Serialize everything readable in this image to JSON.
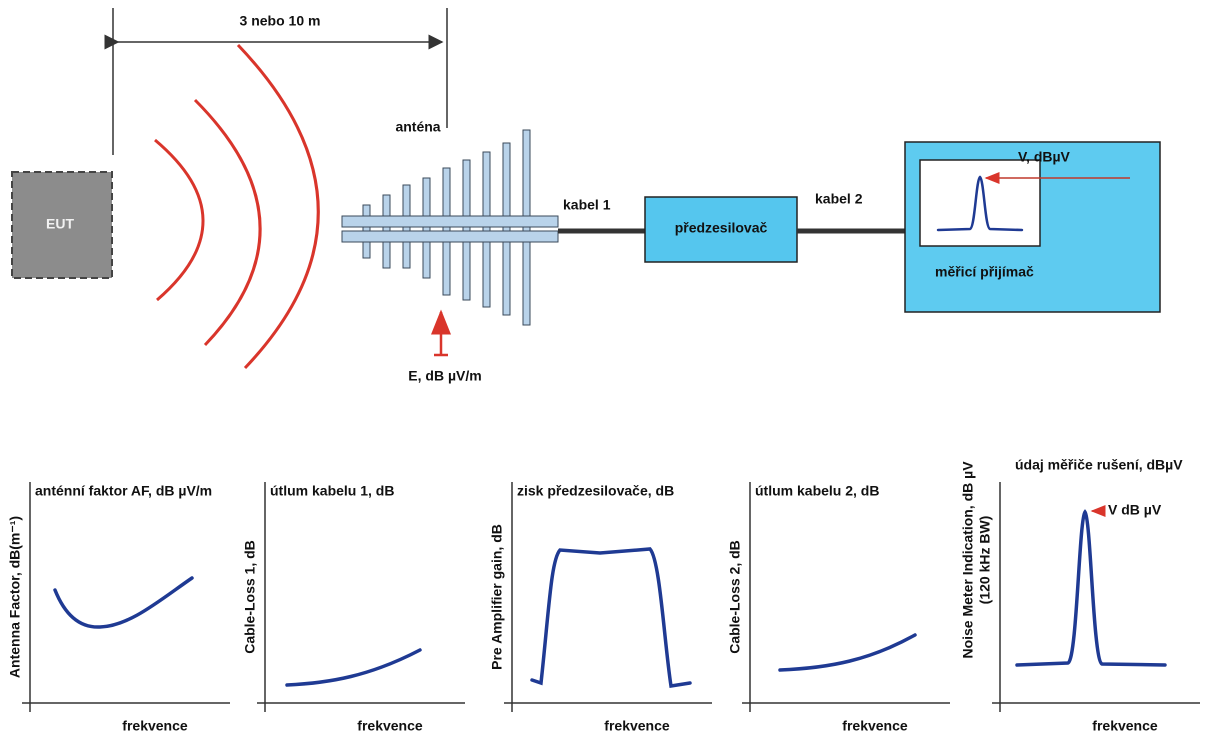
{
  "distance": "3 nebo 10 m",
  "eut": "EUT",
  "antenna": {
    "label": "anténa",
    "field": "E, dB µV/m"
  },
  "cable1": "kabel 1",
  "preamp": "předzesilovač",
  "cable2": "kabel 2",
  "receiver": {
    "reading": "V, dBµV",
    "label": "měřicí přijímač"
  },
  "panels": [
    {
      "title": "anténní faktor AF, dB µV/m",
      "y_label": [
        "Antenna Factor, dB(m⁻¹)"
      ],
      "x_label": "frekvence"
    },
    {
      "title": "útlum kabelu 1, dB",
      "y_label": [
        "Cable-Loss 1, dB"
      ],
      "x_label": "frekvence"
    },
    {
      "title": "zisk předzesilovače, dB",
      "y_label": [
        "Pre Amplifier gain, dB"
      ],
      "x_label": "frekvence"
    },
    {
      "title": "útlum kabelu 2, dB",
      "y_label": [
        "Cable-Loss 2, dB"
      ],
      "x_label": "frekvence"
    },
    {
      "title": "údaj měřiče rušení, dBµV",
      "y_label": [
        "Noise Meter Indication, dB µV",
        "(120 kHz BW)"
      ],
      "x_label": "frekvence",
      "annotation": "V dB µV"
    }
  ]
}
